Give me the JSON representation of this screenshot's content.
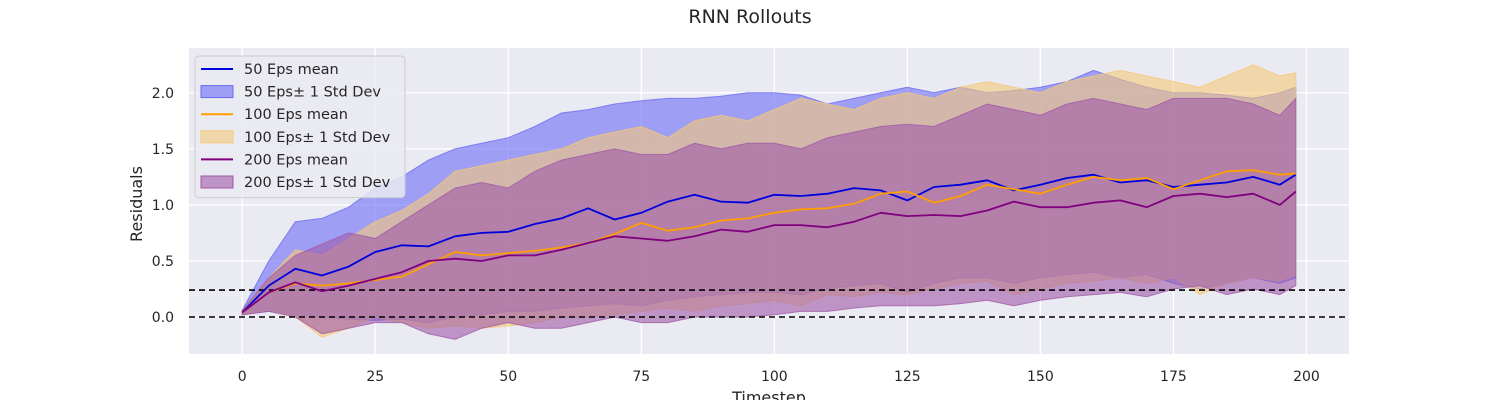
{
  "chart_data": {
    "type": "line",
    "title": "RNN Rollouts",
    "xlabel": "Timestep",
    "ylabel": "Residuals",
    "xlim": [
      -10,
      208
    ],
    "ylim": [
      -0.33,
      2.4
    ],
    "xticks": [
      0,
      25,
      50,
      75,
      100,
      125,
      150,
      175,
      200
    ],
    "yticks": [
      0.0,
      0.5,
      1.0,
      1.5,
      2.0
    ],
    "grid": true,
    "legend_position": "top-left",
    "hlines": [
      {
        "y": 0.0,
        "style": "dashed",
        "color": "#000000"
      },
      {
        "y": 0.24,
        "style": "dashed",
        "color": "#000000"
      }
    ],
    "x": [
      0,
      5,
      10,
      15,
      20,
      25,
      30,
      35,
      40,
      45,
      50,
      55,
      60,
      65,
      70,
      75,
      80,
      85,
      90,
      95,
      100,
      105,
      110,
      115,
      120,
      125,
      130,
      135,
      140,
      145,
      150,
      155,
      160,
      165,
      170,
      175,
      180,
      185,
      190,
      195,
      198
    ],
    "series": [
      {
        "name": "50 Eps",
        "mean_label": "50 Eps mean",
        "band_label": "50 Eps± 1 Std Dev",
        "color": "#0000dd",
        "band_color": "#6a6af5",
        "mean": [
          0.04,
          0.28,
          0.43,
          0.37,
          0.45,
          0.58,
          0.64,
          0.63,
          0.72,
          0.75,
          0.76,
          0.83,
          0.88,
          0.97,
          0.87,
          0.93,
          1.03,
          1.09,
          1.03,
          1.02,
          1.09,
          1.08,
          1.1,
          1.15,
          1.13,
          1.04,
          1.16,
          1.18,
          1.22,
          1.13,
          1.18,
          1.24,
          1.27,
          1.2,
          1.22,
          1.16,
          1.18,
          1.2,
          1.25,
          1.18,
          1.27
        ],
        "upper": [
          0.06,
          0.5,
          0.85,
          0.88,
          0.98,
          1.15,
          1.25,
          1.4,
          1.5,
          1.55,
          1.6,
          1.7,
          1.82,
          1.85,
          1.9,
          1.93,
          1.95,
          1.95,
          1.97,
          2.0,
          2.0,
          1.98,
          1.9,
          1.95,
          2.0,
          2.05,
          2.0,
          2.05,
          2.0,
          2.02,
          2.05,
          2.1,
          2.2,
          2.12,
          2.05,
          2.0,
          2.0,
          1.98,
          1.95,
          2.0,
          2.05
        ],
        "lower": [
          0.02,
          0.05,
          0.02,
          0.0,
          -0.02,
          -0.03,
          -0.02,
          -0.05,
          0.0,
          0.02,
          0.05,
          0.05,
          0.08,
          0.1,
          0.12,
          0.1,
          0.15,
          0.18,
          0.2,
          0.22,
          0.22,
          0.2,
          0.25,
          0.28,
          0.3,
          0.22,
          0.3,
          0.35,
          0.35,
          0.3,
          0.35,
          0.38,
          0.4,
          0.35,
          0.38,
          0.3,
          0.25,
          0.3,
          0.35,
          0.3,
          0.35
        ]
      },
      {
        "name": "100 Eps",
        "mean_label": "100 Eps mean",
        "band_label": "100 Eps± 1 Std Dev",
        "color": "#ff9f00",
        "band_color": "#f5c878",
        "mean": [
          0.04,
          0.22,
          0.3,
          0.28,
          0.3,
          0.33,
          0.36,
          0.47,
          0.58,
          0.55,
          0.57,
          0.59,
          0.62,
          0.66,
          0.74,
          0.84,
          0.77,
          0.8,
          0.86,
          0.88,
          0.93,
          0.96,
          0.97,
          1.01,
          1.1,
          1.12,
          1.02,
          1.08,
          1.18,
          1.14,
          1.1,
          1.18,
          1.25,
          1.22,
          1.24,
          1.14,
          1.22,
          1.3,
          1.31,
          1.27,
          1.28
        ],
        "upper": [
          0.06,
          0.35,
          0.6,
          0.55,
          0.7,
          0.85,
          0.95,
          1.1,
          1.3,
          1.35,
          1.4,
          1.45,
          1.5,
          1.6,
          1.65,
          1.7,
          1.6,
          1.75,
          1.8,
          1.75,
          1.85,
          1.95,
          1.9,
          1.85,
          1.95,
          2.0,
          1.95,
          2.05,
          2.1,
          2.05,
          2.0,
          2.1,
          2.15,
          2.2,
          2.15,
          2.1,
          2.05,
          2.15,
          2.25,
          2.15,
          2.18
        ],
        "lower": [
          0.02,
          0.06,
          0.0,
          -0.18,
          -0.1,
          0.0,
          -0.05,
          -0.1,
          -0.08,
          -0.1,
          -0.08,
          -0.05,
          0.0,
          0.0,
          0.02,
          0.05,
          0.08,
          0.05,
          0.1,
          0.12,
          0.15,
          0.1,
          0.2,
          0.18,
          0.22,
          0.2,
          0.25,
          0.3,
          0.32,
          0.2,
          0.25,
          0.3,
          0.32,
          0.35,
          0.3,
          0.35,
          0.2,
          0.3,
          0.35,
          0.32,
          0.38
        ]
      },
      {
        "name": "200 Eps",
        "mean_label": "200 Eps mean",
        "band_label": "200 Eps± 1 Std Dev",
        "color": "#800080",
        "band_color": "#a05aa8",
        "mean": [
          0.04,
          0.22,
          0.31,
          0.23,
          0.28,
          0.34,
          0.4,
          0.5,
          0.52,
          0.5,
          0.55,
          0.55,
          0.6,
          0.66,
          0.72,
          0.7,
          0.68,
          0.72,
          0.78,
          0.76,
          0.82,
          0.82,
          0.8,
          0.85,
          0.93,
          0.9,
          0.91,
          0.9,
          0.95,
          1.03,
          0.98,
          0.98,
          1.02,
          1.04,
          0.98,
          1.08,
          1.1,
          1.07,
          1.1,
          1.0,
          1.12
        ],
        "upper": [
          0.06,
          0.35,
          0.55,
          0.65,
          0.75,
          0.7,
          0.85,
          1.0,
          1.15,
          1.2,
          1.15,
          1.3,
          1.4,
          1.45,
          1.5,
          1.45,
          1.45,
          1.55,
          1.5,
          1.55,
          1.55,
          1.5,
          1.6,
          1.65,
          1.7,
          1.72,
          1.7,
          1.8,
          1.9,
          1.85,
          1.8,
          1.9,
          1.95,
          1.9,
          1.85,
          1.95,
          1.95,
          1.95,
          1.9,
          1.8,
          1.95
        ],
        "lower": [
          0.02,
          0.05,
          0.0,
          -0.15,
          -0.1,
          -0.05,
          -0.05,
          -0.15,
          -0.2,
          -0.1,
          -0.05,
          -0.1,
          -0.1,
          -0.05,
          0.0,
          -0.05,
          -0.05,
          0.0,
          0.0,
          0.0,
          0.02,
          0.05,
          0.05,
          0.08,
          0.1,
          0.1,
          0.1,
          0.12,
          0.15,
          0.1,
          0.15,
          0.18,
          0.2,
          0.22,
          0.18,
          0.25,
          0.28,
          0.2,
          0.25,
          0.2,
          0.28
        ]
      }
    ]
  }
}
